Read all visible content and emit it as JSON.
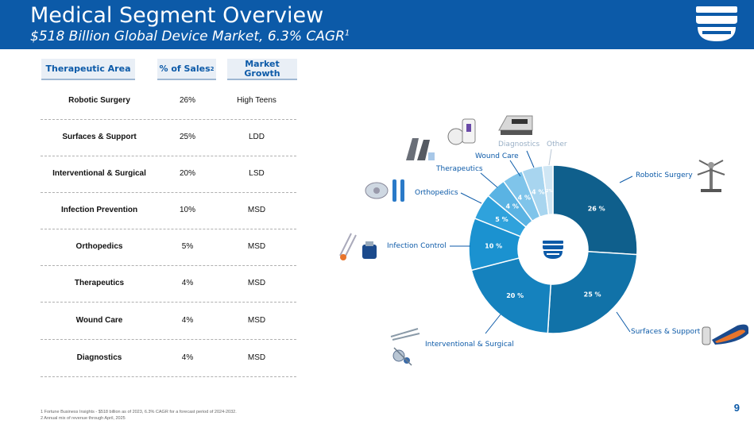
{
  "header": {
    "title": "Medical Segment Overview",
    "subtitle": "$518 Billion Global Device Market, 6.3% CAGR",
    "subtitle_sup": "1",
    "bg_color": "#0c5aa8"
  },
  "table": {
    "headers": {
      "area": "Therapeutic Area",
      "pct": "% of Sales",
      "pct_sup": "2",
      "growth_line1": "Market",
      "growth_line2": "Growth"
    },
    "rows": [
      {
        "area": "Robotic Surgery",
        "pct": "26%",
        "growth": "High Teens"
      },
      {
        "area": "Surfaces & Support",
        "pct": "25%",
        "growth": "LDD"
      },
      {
        "area": "Interventional & Surgical",
        "pct": "20%",
        "growth": "LSD"
      },
      {
        "area": "Infection Prevention",
        "pct": "10%",
        "growth": "MSD"
      },
      {
        "area": "Orthopedics",
        "pct": "5%",
        "growth": "MSD"
      },
      {
        "area": "Therapeutics",
        "pct": "4%",
        "growth": "MSD"
      },
      {
        "area": "Wound Care",
        "pct": "4%",
        "growth": "MSD"
      },
      {
        "area": "Diagnostics",
        "pct": "4%",
        "growth": "MSD"
      }
    ]
  },
  "chart_data": {
    "type": "pie",
    "categories": [
      "Robotic Surgery",
      "Surfaces & Support",
      "Interventional & Surgical",
      "Infection Control",
      "Orthopedics",
      "Therapeutics",
      "Wound Care",
      "Diagnostics",
      "Other"
    ],
    "values": [
      26,
      25,
      20,
      10,
      5,
      4,
      4,
      4,
      2
    ],
    "value_labels": [
      "26 %",
      "25 %",
      "20 %",
      "10 %",
      "5 %",
      "4 %",
      "4 %",
      "4 %",
      "2%"
    ],
    "colors": [
      "#0f5f8c",
      "#1172a8",
      "#1582be",
      "#1b92d0",
      "#2fa2dc",
      "#5ab3e3",
      "#7fc4ea",
      "#a8d5ef",
      "#cfe6f4"
    ],
    "donut": true,
    "legend": "callout-labels"
  },
  "footer": {
    "page_number": "9",
    "footnote1": "1 Fortune Business Insights - $518 billion as of 2023, 6.3% CAGR for a forecast period of 2024-2032.",
    "footnote2": "2 Annual mix of revenue through April, 2025"
  }
}
